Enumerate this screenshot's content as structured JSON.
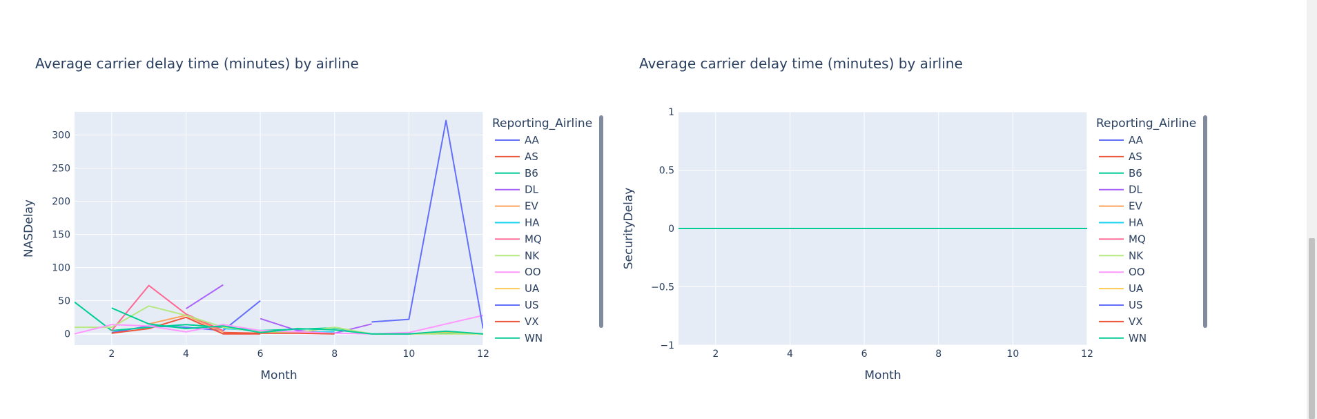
{
  "colors": {
    "plot_bg": "#E5ECF6",
    "grid": "#ffffff",
    "text": "#2a3f5f",
    "scrollbar": "#808B9F"
  },
  "legend_title": "Reporting_Airline",
  "airlines": [
    {
      "name": "AA",
      "color": "#636EFA"
    },
    {
      "name": "AS",
      "color": "#EF553B"
    },
    {
      "name": "B6",
      "color": "#00CC96"
    },
    {
      "name": "DL",
      "color": "#AB63FA"
    },
    {
      "name": "EV",
      "color": "#FFA15A"
    },
    {
      "name": "HA",
      "color": "#19D3F3"
    },
    {
      "name": "MQ",
      "color": "#FF6692"
    },
    {
      "name": "NK",
      "color": "#B6E880"
    },
    {
      "name": "OO",
      "color": "#FF97FF"
    },
    {
      "name": "UA",
      "color": "#FECB52"
    },
    {
      "name": "US",
      "color": "#636EFA"
    },
    {
      "name": "VX",
      "color": "#EF553B"
    },
    {
      "name": "WN",
      "color": "#00CC96"
    }
  ],
  "chart_data": [
    {
      "type": "line",
      "title": "Average carrier delay time (minutes) by airline",
      "xlabel": "Month",
      "ylabel": "NASDelay",
      "xlim": [
        1,
        12
      ],
      "ylim": [
        -17,
        335
      ],
      "xticks": [
        2,
        4,
        6,
        8,
        10,
        12
      ],
      "yticks": [
        0,
        50,
        100,
        150,
        200,
        250,
        300
      ],
      "ytick_labels": [
        "0",
        "50",
        "100",
        "150",
        "200",
        "250",
        "300"
      ],
      "grid": true,
      "legend": "right",
      "series": [
        {
          "name": "AA",
          "points": [
            [
              2,
              2
            ],
            [
              3,
              12
            ],
            [
              4,
              10
            ],
            [
              5,
              5
            ],
            [
              6,
              50
            ]
          ]
        },
        {
          "name": "AS",
          "points": [
            [
              2,
              1
            ],
            [
              3,
              8
            ],
            [
              4,
              25
            ],
            [
              5,
              0
            ],
            [
              6,
              0
            ]
          ]
        },
        {
          "name": "B6",
          "points": [
            [
              1,
              48
            ],
            [
              2,
              5
            ],
            [
              3,
              10
            ],
            [
              4,
              14
            ],
            [
              5,
              10
            ],
            [
              6,
              5
            ],
            [
              7,
              7
            ],
            [
              8,
              9
            ],
            [
              9,
              0
            ],
            [
              10,
              0
            ],
            [
              11,
              2
            ],
            [
              12,
              0
            ]
          ]
        },
        {
          "name": "DL",
          "points": [
            [
              4,
              38
            ],
            [
              5,
              74
            ]
          ]
        },
        {
          "name": "DL",
          "points": [
            [
              6,
              23
            ],
            [
              7,
              5
            ],
            [
              8,
              1
            ],
            [
              9,
              15
            ]
          ]
        },
        {
          "name": "EV",
          "points": [
            [
              3,
              15
            ],
            [
              4,
              28
            ],
            [
              5,
              3
            ]
          ]
        },
        {
          "name": "HA",
          "points": [
            [
              5,
              8
            ],
            [
              6,
              5
            ],
            [
              7,
              2
            ],
            [
              8,
              3
            ]
          ]
        },
        {
          "name": "MQ",
          "points": [
            [
              2,
              5
            ],
            [
              3,
              73
            ],
            [
              4,
              30
            ],
            [
              5,
              5
            ]
          ]
        },
        {
          "name": "NK",
          "points": [
            [
              1,
              10
            ],
            [
              2,
              10
            ],
            [
              3,
              42
            ],
            [
              4,
              28
            ],
            [
              5,
              10
            ],
            [
              6,
              3
            ],
            [
              7,
              2
            ],
            [
              8,
              10
            ],
            [
              9,
              0
            ],
            [
              10,
              0
            ],
            [
              11,
              0
            ],
            [
              12,
              0
            ]
          ]
        },
        {
          "name": "OO",
          "points": [
            [
              1,
              0
            ],
            [
              2,
              14
            ],
            [
              3,
              12
            ],
            [
              4,
              3
            ],
            [
              5,
              14
            ],
            [
              6,
              5
            ],
            [
              7,
              3
            ],
            [
              8,
              1
            ],
            [
              9,
              0
            ],
            [
              10,
              2
            ],
            [
              11,
              15
            ],
            [
              12,
              28
            ]
          ]
        },
        {
          "name": "UA",
          "points": [
            [
              10,
              0
            ],
            [
              11,
              3
            ],
            [
              12,
              0
            ]
          ]
        },
        {
          "name": "US",
          "points": [
            [
              9,
              18
            ],
            [
              10,
              22
            ],
            [
              11,
              322
            ],
            [
              12,
              8
            ]
          ]
        },
        {
          "name": "VX",
          "points": [
            [
              5,
              2
            ],
            [
              6,
              1
            ],
            [
              7,
              1
            ],
            [
              8,
              0
            ]
          ]
        },
        {
          "name": "WN",
          "points": [
            [
              2,
              39
            ],
            [
              3,
              15
            ],
            [
              4,
              8
            ],
            [
              5,
              12
            ],
            [
              6,
              2
            ],
            [
              7,
              8
            ],
            [
              8,
              6
            ],
            [
              9,
              0
            ],
            [
              10,
              0
            ],
            [
              11,
              4
            ],
            [
              12,
              0
            ]
          ]
        }
      ]
    },
    {
      "type": "line",
      "title": "Average carrier delay time (minutes) by airline",
      "xlabel": "Month",
      "ylabel": "SecurityDelay",
      "xlim": [
        1,
        12
      ],
      "ylim": [
        -1,
        1
      ],
      "xticks": [
        2,
        4,
        6,
        8,
        10,
        12
      ],
      "yticks": [
        1,
        0.5,
        0,
        -0.5,
        -1
      ],
      "ytick_labels": [
        "1",
        "0.5",
        "0",
        "−0.5",
        "−1"
      ],
      "grid": true,
      "legend": "right",
      "series": [
        {
          "name": "AA",
          "points": [
            [
              1,
              0
            ],
            [
              12,
              0
            ]
          ]
        },
        {
          "name": "AS",
          "points": [
            [
              1,
              0
            ],
            [
              12,
              0
            ]
          ]
        },
        {
          "name": "DL",
          "points": [
            [
              4,
              0
            ],
            [
              5,
              0
            ]
          ]
        },
        {
          "name": "US",
          "points": [
            [
              9,
              0
            ],
            [
              12,
              0
            ]
          ]
        },
        {
          "name": "WN",
          "points": [
            [
              1,
              0
            ],
            [
              12,
              0
            ]
          ]
        }
      ]
    }
  ]
}
